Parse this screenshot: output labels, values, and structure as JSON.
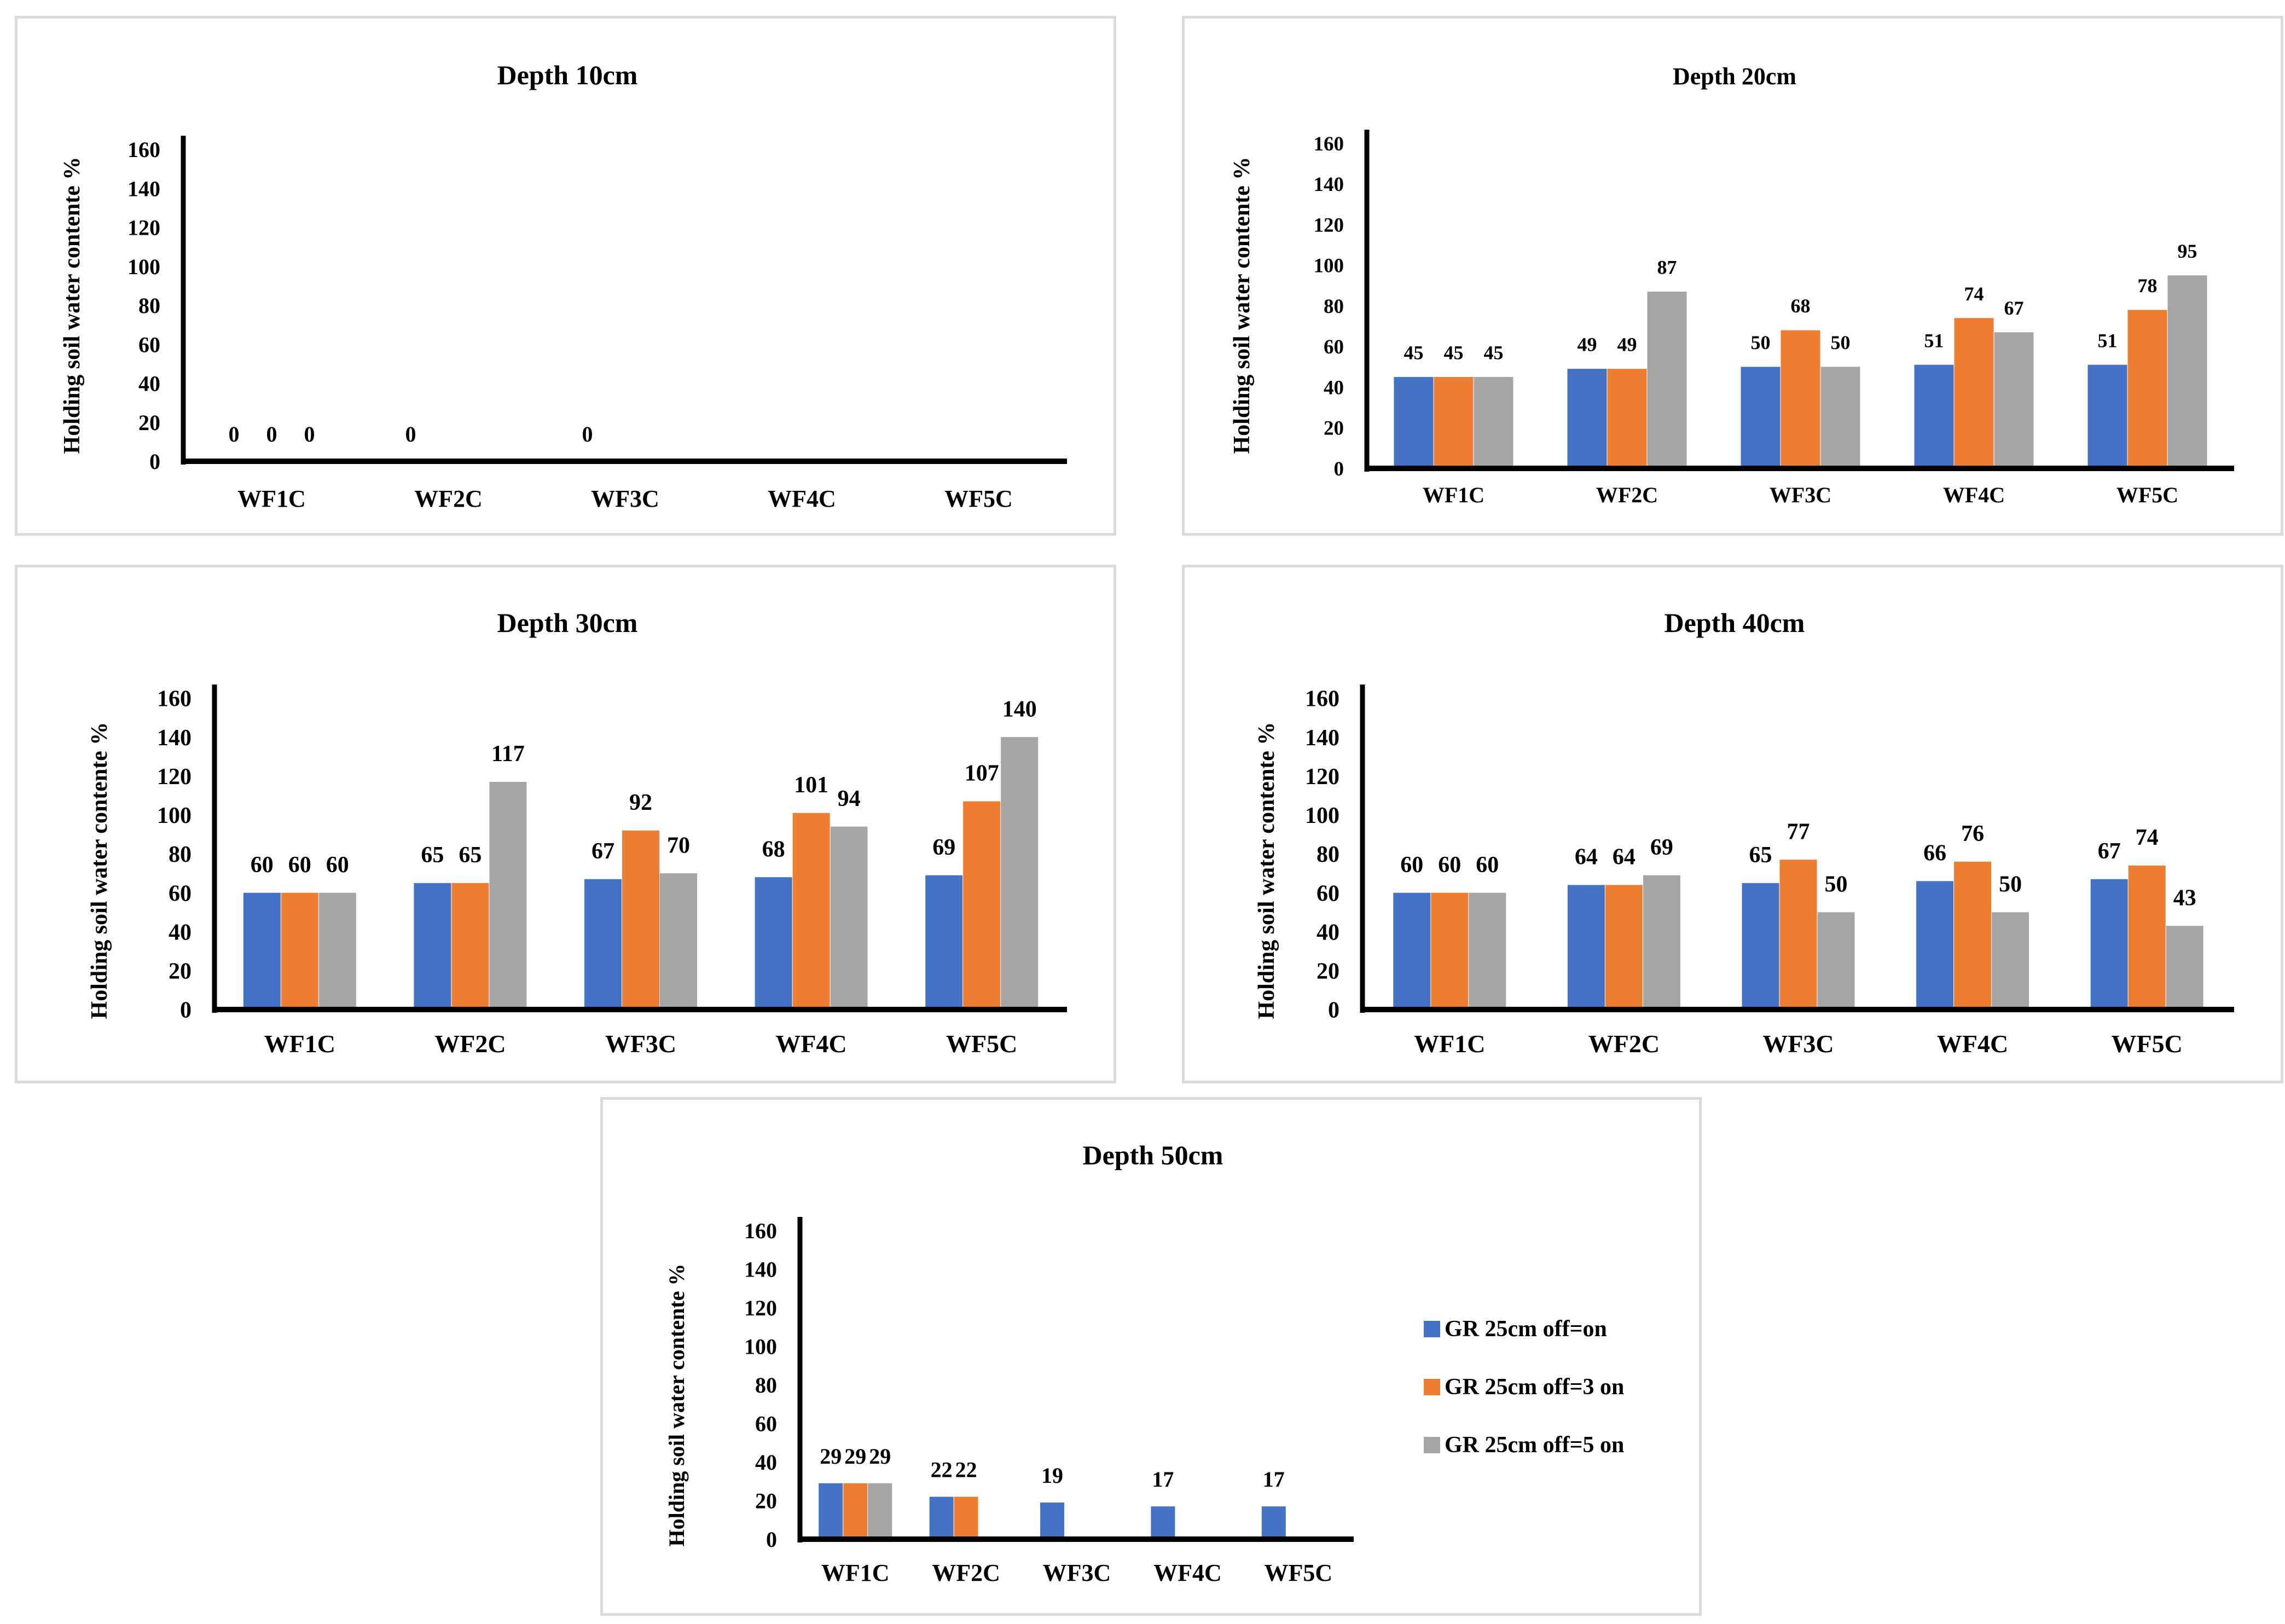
{
  "y_axis_ticks": [
    "0",
    "20",
    "40",
    "60",
    "80",
    "100",
    "120",
    "140",
    "160"
  ],
  "colors": {
    "series_1": "#4472c4",
    "series_2": "#ed7d31",
    "series_3": "#a5a5a5",
    "axis": "#000000",
    "border": "#d9d9d9"
  },
  "legend": [
    "GR 25cm off=on",
    "GR 25cm off=3 on",
    "GR 25cm off=5 on"
  ],
  "chart_data": [
    {
      "type": "bar",
      "title": "Depth 10cm",
      "ylabel": "Holding  soil water contente %",
      "xlabel": "",
      "ylim": [
        0,
        160
      ],
      "categories": [
        "WF1C",
        "WF2C",
        "WF3C",
        "WF4C",
        "WF5C"
      ],
      "series": [
        {
          "name": "GR 25cm off=on",
          "values": [
            0,
            0,
            0,
            null,
            null
          ],
          "labels": [
            "0",
            "0",
            "0",
            "",
            ""
          ]
        },
        {
          "name": "GR 25cm off=3 on",
          "values": [
            0,
            null,
            null,
            null,
            null
          ],
          "labels": [
            "0",
            "",
            "",
            "",
            ""
          ]
        },
        {
          "name": "GR 25cm off=5 on",
          "values": [
            0,
            null,
            null,
            null,
            null
          ],
          "labels": [
            "0",
            "",
            "",
            "",
            ""
          ]
        }
      ]
    },
    {
      "type": "bar",
      "title": "Depth 20cm",
      "ylabel": "Holding soil water contente %",
      "xlabel": "",
      "ylim": [
        0,
        160
      ],
      "categories": [
        "WF1C",
        "WF2C",
        "WF3C",
        "WF4C",
        "WF5C"
      ],
      "series": [
        {
          "name": "GR 25cm off=on",
          "values": [
            45,
            49,
            50,
            51,
            51
          ],
          "labels": [
            "45",
            "49",
            "50",
            "51",
            "51"
          ]
        },
        {
          "name": "GR 25cm off=3 on",
          "values": [
            45,
            49,
            68,
            74,
            78
          ],
          "labels": [
            "45",
            "49",
            "68",
            "74",
            "78"
          ]
        },
        {
          "name": "GR 25cm off=5 on",
          "values": [
            45,
            87,
            50,
            67,
            95
          ],
          "labels": [
            "45",
            "87",
            "50",
            "67",
            "95"
          ]
        }
      ]
    },
    {
      "type": "bar",
      "title": "Depth 30cm",
      "ylabel": "Holding soil water contente %",
      "xlabel": "",
      "ylim": [
        0,
        160
      ],
      "categories": [
        "WF1C",
        "WF2C",
        "WF3C",
        "WF4C",
        "WF5C"
      ],
      "series": [
        {
          "name": "GR 25cm off=on",
          "values": [
            60,
            65,
            67,
            68,
            69
          ],
          "labels": [
            "60",
            "65",
            "67",
            "68",
            "69"
          ]
        },
        {
          "name": "GR 25cm off=3 on",
          "values": [
            60,
            65,
            92,
            101,
            107
          ],
          "labels": [
            "60",
            "65",
            "92",
            "101",
            "107"
          ]
        },
        {
          "name": "GR 25cm off=5 on",
          "values": [
            60,
            117,
            70,
            94,
            140
          ],
          "labels": [
            "60",
            "117",
            "70",
            "94",
            "140"
          ]
        }
      ]
    },
    {
      "type": "bar",
      "title": "Depth 40cm",
      "ylabel": "Holding soil water contente %",
      "xlabel": "",
      "ylim": [
        0,
        160
      ],
      "categories": [
        "WF1C",
        "WF2C",
        "WF3C",
        "WF4C",
        "WF5C"
      ],
      "series": [
        {
          "name": "GR 25cm off=on",
          "values": [
            60,
            64,
            65,
            66,
            67
          ],
          "labels": [
            "60",
            "64",
            "65",
            "66",
            "67"
          ]
        },
        {
          "name": "GR 25cm off=3 on",
          "values": [
            60,
            64,
            77,
            76,
            74
          ],
          "labels": [
            "60",
            "64",
            "77",
            "76",
            "74"
          ]
        },
        {
          "name": "GR 25cm off=5 on",
          "values": [
            60,
            69,
            50,
            50,
            43
          ],
          "labels": [
            "60",
            "69",
            "50",
            "50",
            "43"
          ]
        }
      ]
    },
    {
      "type": "bar",
      "title": "Depth 50cm",
      "ylabel": "Holding soil water contente %",
      "xlabel": "",
      "ylim": [
        0,
        160
      ],
      "categories": [
        "WF1C",
        "WF2C",
        "WF3C",
        "WF4C",
        "WF5C"
      ],
      "series": [
        {
          "name": "GR 25cm off=on",
          "values": [
            29,
            22,
            19,
            17,
            17
          ],
          "labels": [
            "29",
            "22",
            "19",
            "17",
            "17"
          ]
        },
        {
          "name": "GR 25cm off=3 on",
          "values": [
            29,
            22,
            null,
            null,
            null
          ],
          "labels": [
            "29",
            "22",
            "",
            "",
            ""
          ]
        },
        {
          "name": "GR 25cm off=5 on",
          "values": [
            29,
            null,
            null,
            null,
            null
          ],
          "labels": [
            "29",
            "",
            "",
            "",
            ""
          ]
        }
      ]
    }
  ]
}
